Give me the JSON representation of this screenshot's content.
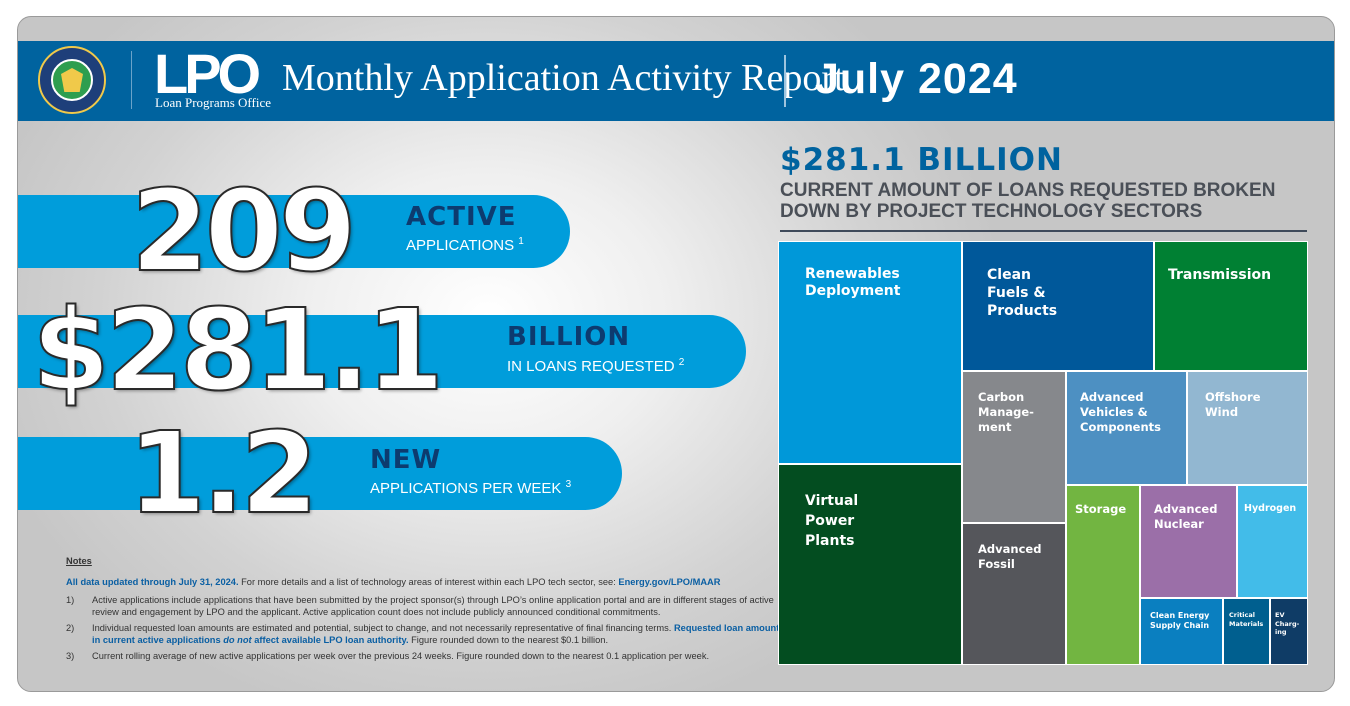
{
  "header": {
    "logo_text": "LPO",
    "logo_subtext": "Loan Programs Office",
    "report_title": "Monthly Application Activity Report",
    "report_period": "July 2024",
    "seal_icon": "doe-seal-icon"
  },
  "stats": {
    "active": {
      "number": "209",
      "heading": "ACTIVE",
      "sub": "APPLICATIONS",
      "footnote": "1"
    },
    "loans": {
      "number": "$281.1",
      "heading": "BILLION",
      "sub": "IN LOANS REQUESTED",
      "footnote": "2"
    },
    "new": {
      "number": "1.2",
      "heading": "NEW",
      "sub": "APPLICATIONS PER WEEK",
      "footnote": "3"
    }
  },
  "notes": {
    "heading": "Notes",
    "intro_bold": "All data updated through July 31, 2024.",
    "intro_plain": " For more details and a list of technology areas of interest within each LPO tech sector, see: ",
    "intro_link": "Energy.gov/LPO/MAAR",
    "items": [
      {
        "num": "1)",
        "text": "Active applications include applications that have been submitted by the project sponsor(s) through LPO’s online application portal and are in different stages of active review and engagement by LPO and the applicant. Active application count does not include publicly announced conditional commitments."
      },
      {
        "num": "2)",
        "text": "Individual requested loan amounts are estimated and potential, subject to change, and not necessarily representative of final financing terms. ",
        "bold": "Requested loan amounts in current active applications ",
        "bold_italic": "do not",
        "bold_tail": " affect available LPO loan authority.",
        "tail": " Figure rounded down to the nearest $0.1 billion."
      },
      {
        "num": "3)",
        "text": "Current rolling average of new active applications per week over the previous 24 weeks. Figure rounded down to the nearest 0.1 application per week."
      }
    ]
  },
  "treemap": {
    "amount": "$281.1 BILLION",
    "subtitle": "CURRENT AMOUNT OF LOANS REQUESTED BROKEN DOWN BY PROJECT TECHNOLOGY SECTORS",
    "tiles": {
      "renewables": {
        "label": "Renewables\nDeployment",
        "color": "#0098d9"
      },
      "clean_fuels": {
        "label": "Clean\nFuels &\nProducts",
        "color": "#00589a"
      },
      "transmission": {
        "label": "Transmission",
        "color": "#008033"
      },
      "vpp": {
        "label": "Virtual\nPower\nPlants",
        "color": "#034d20"
      },
      "carbon": {
        "label": "Carbon\nManage-\nment",
        "color": "#86888c"
      },
      "adv_vehicles": {
        "label": "Advanced\nVehicles &\nComponents",
        "color": "#4d90c2"
      },
      "offshore_wind": {
        "label": "Offshore\nWind",
        "color": "#92b7d1"
      },
      "adv_fossil": {
        "label": "Advanced\nFossil",
        "color": "#55565b"
      },
      "storage": {
        "label": "Storage",
        "color": "#72b541"
      },
      "adv_nuclear": {
        "label": "Advanced\nNuclear",
        "color": "#9b6fa8"
      },
      "hydrogen": {
        "label": "Hydrogen",
        "color": "#42bce9"
      },
      "supply_chain": {
        "label": "Clean Energy\nSupply Chain",
        "color": "#0a7fc0"
      },
      "critical_materials": {
        "label": "Critical\nMaterials",
        "color": "#005f8f"
      },
      "ev_charging": {
        "label": "EV\nCharg-\ning",
        "color": "#0f3c66"
      }
    }
  }
}
